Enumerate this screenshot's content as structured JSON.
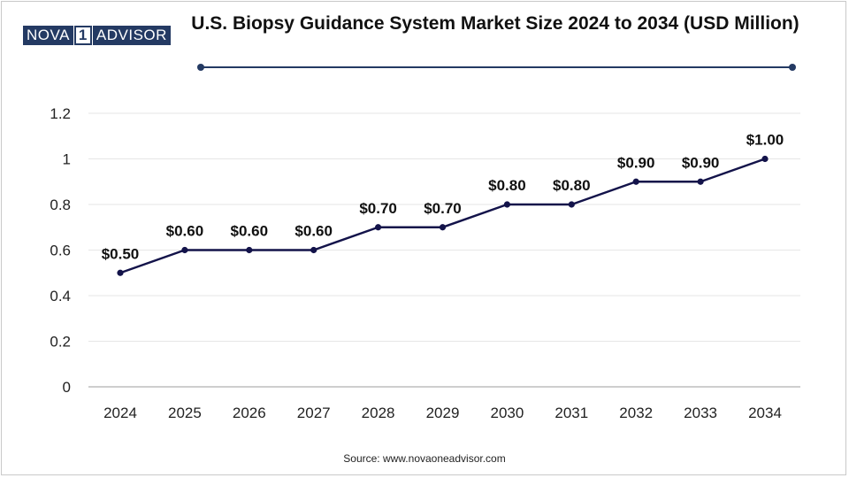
{
  "brand": {
    "left": "NOVA",
    "mid": "1",
    "right": "ADVISOR"
  },
  "colors": {
    "line": "#13134a",
    "accent": "#243a63",
    "grid": "#e6e6e6",
    "axis": "#bdbdbd"
  },
  "source": "Source: www.novaoneadvisor.com",
  "chart_data": {
    "type": "line",
    "title": "U.S. Biopsy Guidance System Market Size 2024 to 2034 (USD Million)",
    "xlabel": "",
    "ylabel": "",
    "categories": [
      "2024",
      "2025",
      "2026",
      "2027",
      "2028",
      "2029",
      "2030",
      "2031",
      "2032",
      "2033",
      "2034"
    ],
    "series": [
      {
        "values": [
          0.5,
          0.6,
          0.6,
          0.6,
          0.7,
          0.7,
          0.8,
          0.8,
          0.9,
          0.9,
          1.0
        ],
        "labels": [
          "$0.50",
          "$0.60",
          "$0.60",
          "$0.60",
          "$0.70",
          "$0.70",
          "$0.80",
          "$0.80",
          "$0.90",
          "$0.90",
          "$1.00"
        ]
      }
    ],
    "ylim": [
      0,
      1.2
    ],
    "yticks": [
      0,
      0.2,
      0.4,
      0.6,
      0.8,
      1,
      1.2
    ],
    "ytick_labels": [
      "0",
      "0.2",
      "0.4",
      "0.6",
      "0.8",
      "1",
      "1.2"
    ],
    "grid": true,
    "legend": "none"
  }
}
